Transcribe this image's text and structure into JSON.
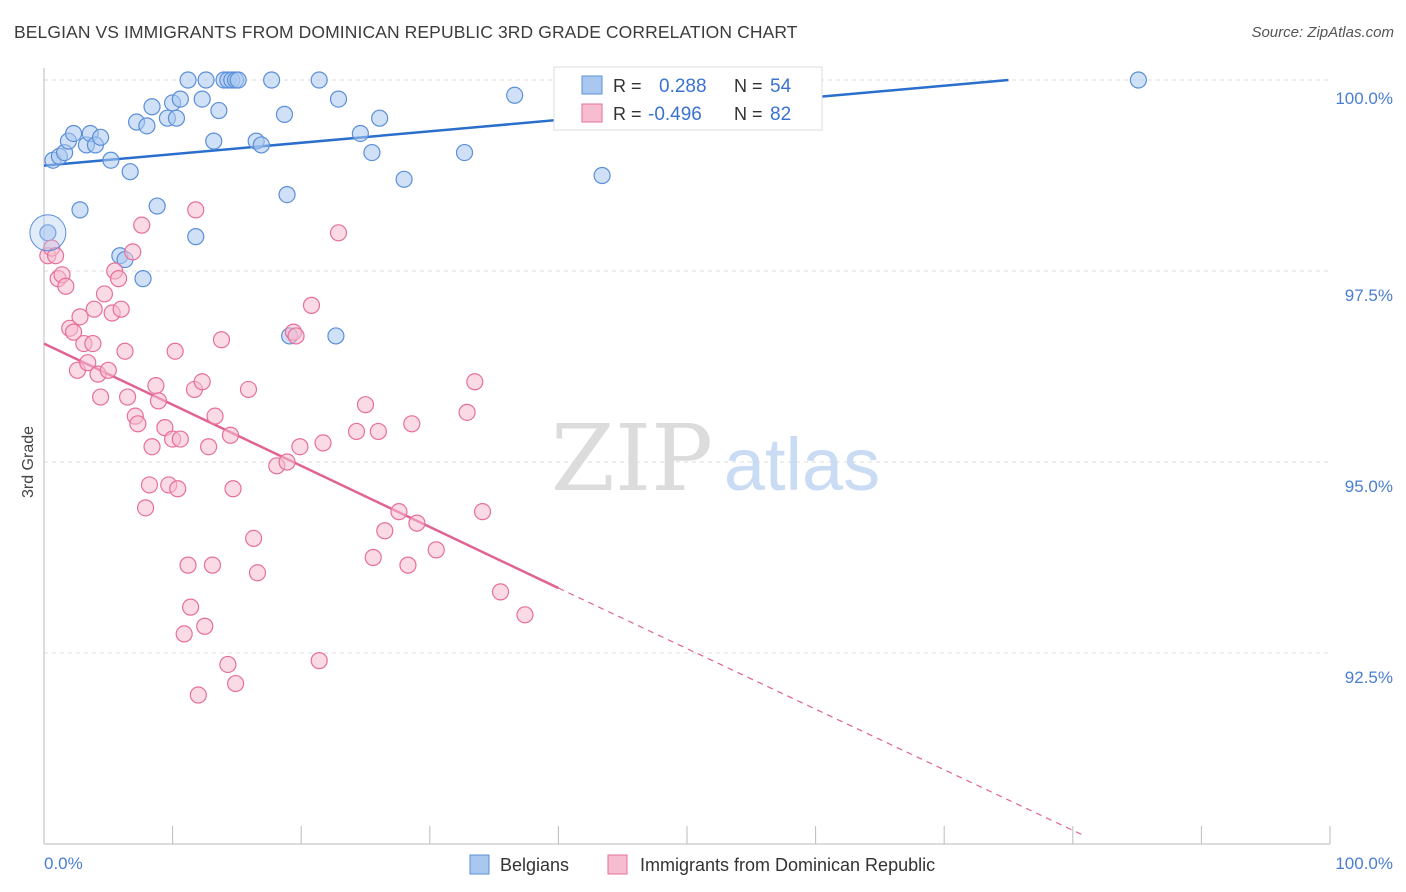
{
  "title": "BELGIAN VS IMMIGRANTS FROM DOMINICAN REPUBLIC 3RD GRADE CORRELATION CHART",
  "source": "Source: ZipAtlas.com",
  "watermark": {
    "zip": "ZIP",
    "atlas": "atlas"
  },
  "colors": {
    "blue": "#5b8fd8",
    "blue_fill": "#a9c8f0",
    "blue_line": "#2a6fcc",
    "pink": "#e76f9a",
    "pink_fill": "#f6bcd0",
    "pink_line": "#e06391",
    "axis_text": "#4a7ed0",
    "grid": "#dddddd"
  },
  "legend": {
    "rows": [
      {
        "r_label": "R =",
        "r_value": "0.288",
        "n_label": "N =",
        "n_value": "54"
      },
      {
        "r_label": "R =",
        "r_value": "-0.496",
        "n_label": "N =",
        "n_value": "82"
      }
    ]
  },
  "bottom_legend": [
    "Belgians",
    "Immigrants from Dominican Republic"
  ],
  "chart_data": {
    "type": "scatter",
    "xlabel": "",
    "ylabel": "3rd Grade",
    "xlim": [
      0,
      100
    ],
    "ylim": [
      89.5,
      100.8
    ],
    "x_tick_labels": [
      "0.0%",
      "100.0%"
    ],
    "y_ticks": [
      92.5,
      95.0,
      97.5,
      100.0
    ],
    "y_tick_labels": [
      "92.5%",
      "95.0%",
      "97.5%",
      "100.0%"
    ],
    "grid": true,
    "legend_position": "top-center",
    "series": [
      {
        "name": "Belgians",
        "r": 0.288,
        "n": 54,
        "trend": {
          "x": [
            0,
            75
          ],
          "y": [
            98.88,
            100.0
          ]
        },
        "points": [
          [
            0.3,
            98.0
          ],
          [
            0.7,
            98.95
          ],
          [
            1.2,
            99.0
          ],
          [
            1.6,
            99.05
          ],
          [
            1.9,
            99.2
          ],
          [
            2.3,
            99.3
          ],
          [
            2.8,
            98.3
          ],
          [
            3.3,
            99.15
          ],
          [
            3.6,
            99.3
          ],
          [
            4.0,
            99.15
          ],
          [
            4.4,
            99.25
          ],
          [
            5.2,
            98.95
          ],
          [
            5.9,
            97.7
          ],
          [
            6.3,
            97.65
          ],
          [
            6.7,
            98.8
          ],
          [
            7.2,
            99.45
          ],
          [
            7.7,
            97.4
          ],
          [
            8.0,
            99.4
          ],
          [
            8.4,
            99.65
          ],
          [
            8.8,
            98.35
          ],
          [
            9.6,
            99.5
          ],
          [
            10.0,
            99.7
          ],
          [
            10.3,
            99.5
          ],
          [
            10.6,
            99.75
          ],
          [
            11.2,
            100.0
          ],
          [
            11.8,
            97.95
          ],
          [
            12.3,
            99.75
          ],
          [
            12.6,
            100.0
          ],
          [
            13.2,
            99.2
          ],
          [
            13.6,
            99.6
          ],
          [
            14.0,
            100.0
          ],
          [
            14.3,
            100.0
          ],
          [
            14.6,
            100.0
          ],
          [
            14.9,
            100.0
          ],
          [
            15.1,
            100.0
          ],
          [
            16.5,
            99.2
          ],
          [
            16.9,
            99.15
          ],
          [
            17.7,
            100.0
          ],
          [
            18.7,
            99.55
          ],
          [
            18.9,
            98.5
          ],
          [
            19.1,
            96.65
          ],
          [
            21.4,
            100.0
          ],
          [
            22.9,
            99.75
          ],
          [
            22.7,
            96.65
          ],
          [
            24.6,
            99.3
          ],
          [
            25.5,
            99.05
          ],
          [
            26.1,
            99.5
          ],
          [
            28.0,
            98.7
          ],
          [
            32.7,
            99.05
          ],
          [
            36.6,
            99.8
          ],
          [
            43.4,
            98.75
          ],
          [
            48.6,
            100.0
          ],
          [
            52.6,
            100.0
          ],
          [
            85.1,
            100.0
          ]
        ]
      },
      {
        "name": "Immigrants from Dominican Republic",
        "r": -0.496,
        "n": 82,
        "trend": {
          "x": [
            0,
            40
          ],
          "y": [
            96.55,
            93.35
          ]
        },
        "trend_dashed": {
          "x": [
            40,
            81
          ],
          "y": [
            93.35,
            90.1
          ]
        },
        "points": [
          [
            0.3,
            97.7
          ],
          [
            0.6,
            97.8
          ],
          [
            0.9,
            97.7
          ],
          [
            1.1,
            97.4
          ],
          [
            1.4,
            97.45
          ],
          [
            1.7,
            97.3
          ],
          [
            2.0,
            96.75
          ],
          [
            2.3,
            96.7
          ],
          [
            2.6,
            96.2
          ],
          [
            2.8,
            96.9
          ],
          [
            3.1,
            96.55
          ],
          [
            3.4,
            96.3
          ],
          [
            3.8,
            96.55
          ],
          [
            3.9,
            97.0
          ],
          [
            4.2,
            96.15
          ],
          [
            4.4,
            95.85
          ],
          [
            4.7,
            97.2
          ],
          [
            5.0,
            96.2
          ],
          [
            5.3,
            96.95
          ],
          [
            5.5,
            97.5
          ],
          [
            5.8,
            97.4
          ],
          [
            6.0,
            97.0
          ],
          [
            6.3,
            96.45
          ],
          [
            6.5,
            95.85
          ],
          [
            6.9,
            97.75
          ],
          [
            7.1,
            95.6
          ],
          [
            7.3,
            95.5
          ],
          [
            7.6,
            98.1
          ],
          [
            7.9,
            94.4
          ],
          [
            8.2,
            94.7
          ],
          [
            8.4,
            95.2
          ],
          [
            8.7,
            96.0
          ],
          [
            8.9,
            95.8
          ],
          [
            9.4,
            95.45
          ],
          [
            9.7,
            94.7
          ],
          [
            10.0,
            95.3
          ],
          [
            10.2,
            96.45
          ],
          [
            10.4,
            94.65
          ],
          [
            10.6,
            95.3
          ],
          [
            10.9,
            92.75
          ],
          [
            11.2,
            93.65
          ],
          [
            11.4,
            93.1
          ],
          [
            11.7,
            95.95
          ],
          [
            12.0,
            91.95
          ],
          [
            12.3,
            96.05
          ],
          [
            12.5,
            92.85
          ],
          [
            12.8,
            95.2
          ],
          [
            13.1,
            93.65
          ],
          [
            13.3,
            95.6
          ],
          [
            13.8,
            96.6
          ],
          [
            14.3,
            92.35
          ],
          [
            14.5,
            95.35
          ],
          [
            14.7,
            94.65
          ],
          [
            14.9,
            92.1
          ],
          [
            15.9,
            95.95
          ],
          [
            16.3,
            94.0
          ],
          [
            16.6,
            93.55
          ],
          [
            18.1,
            94.95
          ],
          [
            18.9,
            95.0
          ],
          [
            19.4,
            96.7
          ],
          [
            19.6,
            96.65
          ],
          [
            19.9,
            95.2
          ],
          [
            20.8,
            97.05
          ],
          [
            21.4,
            92.4
          ],
          [
            21.7,
            95.25
          ],
          [
            22.9,
            98.0
          ],
          [
            24.3,
            95.4
          ],
          [
            25.0,
            95.75
          ],
          [
            25.6,
            93.75
          ],
          [
            26.0,
            95.4
          ],
          [
            26.5,
            94.1
          ],
          [
            27.6,
            94.35
          ],
          [
            28.3,
            93.65
          ],
          [
            28.6,
            95.5
          ],
          [
            29.0,
            94.2
          ],
          [
            30.5,
            93.85
          ],
          [
            32.9,
            95.65
          ],
          [
            33.5,
            96.05
          ],
          [
            34.1,
            94.35
          ],
          [
            35.5,
            93.3
          ],
          [
            37.4,
            93.0
          ],
          [
            11.8,
            98.3
          ]
        ]
      }
    ]
  }
}
